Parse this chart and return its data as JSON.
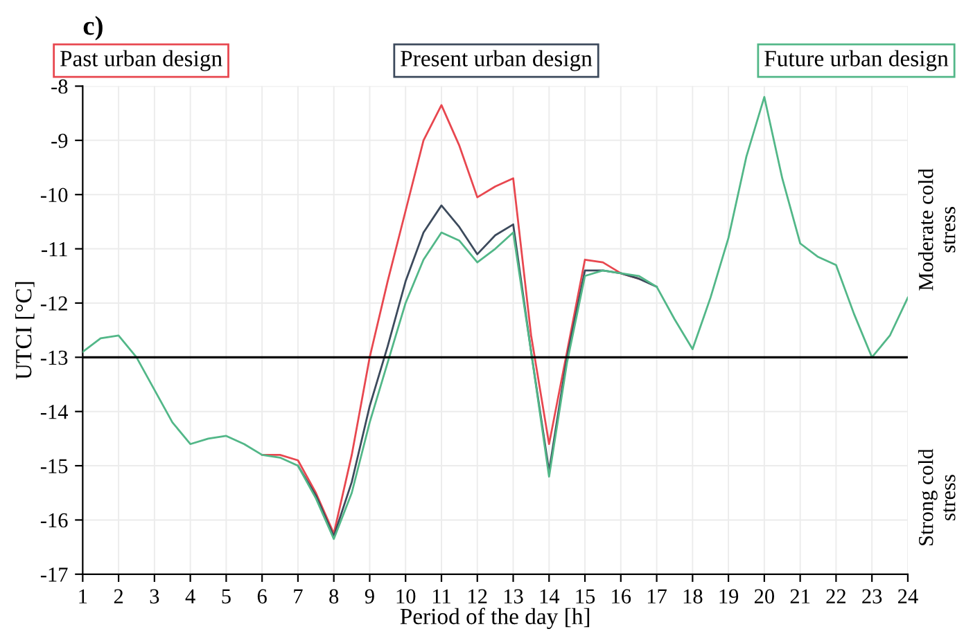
{
  "chart_data": {
    "type": "line",
    "xlabel": "Period of the day [h]",
    "ylabel": "UTCI [°C]",
    "annotations": [
      "c)",
      "Moderate cold\nstress",
      "Strong cold\nstress"
    ],
    "xlim": [
      1,
      24
    ],
    "xticks": [
      1,
      2,
      3,
      4,
      5,
      6,
      7,
      8,
      9,
      10,
      11,
      12,
      13,
      14,
      15,
      16,
      17,
      18,
      19,
      20,
      21,
      22,
      23,
      24
    ],
    "ylim": [
      -17,
      -8
    ],
    "yticks": [
      -17,
      -16,
      -15,
      -14,
      -13,
      -12,
      -11,
      -10,
      -9,
      -8
    ],
    "grid": true,
    "legend": "top",
    "ref_lines": [
      {
        "axis": "y",
        "value": -13,
        "color": "#000000"
      }
    ],
    "series": [
      {
        "name": "Past urban design",
        "color": "#e8474f",
        "x": [
          6,
          6.5,
          7,
          7.5,
          8,
          8.5,
          9,
          9.5,
          10,
          10.5,
          11,
          11.5,
          12,
          12.5,
          13,
          13.5,
          14,
          14.5,
          15,
          15.5,
          16,
          16.5
        ],
        "values": [
          -14.8,
          -14.8,
          -14.9,
          -15.5,
          -16.25,
          -14.8,
          -13.0,
          -11.6,
          -10.3,
          -9.0,
          -8.35,
          -9.1,
          -10.05,
          -9.85,
          -9.7,
          -12.6,
          -14.6,
          -12.9,
          -11.2,
          -11.25,
          -11.45,
          -11.55
        ]
      },
      {
        "name": "Present urban design",
        "color": "#3c4a5c",
        "x": [
          7,
          7.5,
          8,
          8.5,
          9,
          9.5,
          10,
          10.5,
          11,
          11.5,
          12,
          12.5,
          13,
          13.5,
          14,
          14.5,
          15,
          15.5,
          16,
          16.5,
          17
        ],
        "values": [
          -15.0,
          -15.55,
          -16.3,
          -15.3,
          -13.9,
          -12.8,
          -11.6,
          -10.7,
          -10.2,
          -10.6,
          -11.1,
          -10.75,
          -10.55,
          -12.9,
          -15.1,
          -13.0,
          -11.4,
          -11.4,
          -11.45,
          -11.55,
          -11.7
        ]
      },
      {
        "name": "Future urban design",
        "color": "#52b788",
        "x": [
          1,
          1.5,
          2,
          2.5,
          3,
          3.5,
          4,
          4.5,
          5,
          5.5,
          6,
          6.5,
          7,
          7.5,
          8,
          8.5,
          9,
          9.5,
          10,
          10.5,
          11,
          11.5,
          12,
          12.5,
          13,
          13.5,
          14,
          14.5,
          15,
          15.5,
          16,
          16.5,
          17,
          17.5,
          18,
          18.5,
          19,
          19.5,
          20,
          20.5,
          21,
          21.5,
          22,
          22.5,
          23,
          23.5,
          24
        ],
        "values": [
          -12.9,
          -12.65,
          -12.6,
          -13.0,
          -13.6,
          -14.2,
          -14.6,
          -14.5,
          -14.45,
          -14.6,
          -14.8,
          -14.85,
          -15.0,
          -15.6,
          -16.35,
          -15.5,
          -14.2,
          -13.1,
          -12.0,
          -11.2,
          -10.7,
          -10.85,
          -11.25,
          -11.0,
          -10.7,
          -12.9,
          -15.2,
          -13.1,
          -11.5,
          -11.4,
          -11.45,
          -11.5,
          -11.7,
          -12.3,
          -12.85,
          -11.9,
          -10.8,
          -9.3,
          -8.2,
          -9.7,
          -10.9,
          -11.15,
          -11.3,
          -12.2,
          -13.0,
          -12.6,
          -11.9
        ]
      }
    ]
  }
}
